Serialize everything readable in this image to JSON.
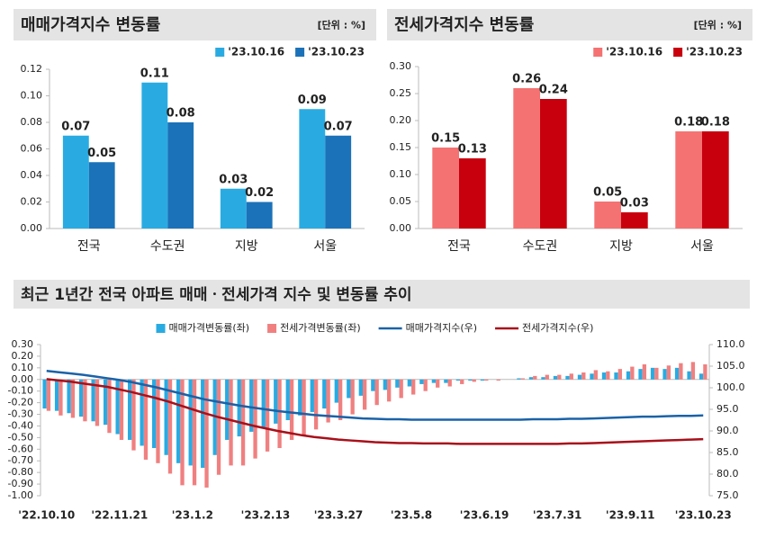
{
  "chart_data": [
    {
      "type": "bar",
      "title": "매매가격지수 변동률",
      "unit": "[단위 : %]",
      "categories": [
        "전국",
        "수도권",
        "지방",
        "서울"
      ],
      "series": [
        {
          "name": "'23.10.16",
          "color": "#29abe2",
          "values": [
            0.07,
            0.11,
            0.03,
            0.09
          ]
        },
        {
          "name": "'23.10.23",
          "color": "#1b72b8",
          "values": [
            0.05,
            0.08,
            0.02,
            0.07
          ]
        }
      ],
      "ylim": [
        0,
        0.12
      ],
      "yticks": [
        {
          "value": 0,
          "label": "0.00"
        },
        {
          "value": 0.02,
          "label": "0.02"
        },
        {
          "value": 0.04,
          "label": "0.04"
        },
        {
          "value": 0.06,
          "label": "0.06"
        },
        {
          "value": 0.08,
          "label": "0.08"
        },
        {
          "value": 0.1,
          "label": "0.10"
        },
        {
          "value": 0.12,
          "label": "0.12"
        }
      ],
      "grid": false,
      "legend": "top-right"
    },
    {
      "type": "bar",
      "title": "전세가격지수 변동률",
      "unit": "[단위 : %]",
      "categories": [
        "전국",
        "수도권",
        "지방",
        "서울"
      ],
      "series": [
        {
          "name": "'23.10.16",
          "color": "#f47272",
          "values": [
            0.15,
            0.26,
            0.05,
            0.18
          ]
        },
        {
          "name": "'23.10.23",
          "color": "#c8000e",
          "values": [
            0.13,
            0.24,
            0.03,
            0.18
          ]
        }
      ],
      "ylim": [
        0,
        0.3
      ],
      "yticks": [
        {
          "value": 0,
          "label": "0.00"
        },
        {
          "value": 0.05,
          "label": "0.05"
        },
        {
          "value": 0.1,
          "label": "0.10"
        },
        {
          "value": 0.15,
          "label": "0.15"
        },
        {
          "value": 0.2,
          "label": "0.20"
        },
        {
          "value": 0.25,
          "label": "0.25"
        },
        {
          "value": 0.3,
          "label": "0.30"
        }
      ],
      "grid": false,
      "legend": "top-right"
    },
    {
      "type": "combo",
      "title": "최근 1년간 전국 아파트 매매ㆍ전세가격 지수 및 변동률 추이",
      "categories": [
        "'22.10.10",
        null,
        null,
        null,
        null,
        null,
        "'22.11.21",
        null,
        null,
        null,
        null,
        null,
        "'23.1.2",
        null,
        null,
        null,
        null,
        null,
        "'23.2.13",
        null,
        null,
        null,
        null,
        null,
        "'23.3.27",
        null,
        null,
        null,
        null,
        null,
        "'23.5.8",
        null,
        null,
        null,
        null,
        null,
        "'23.6.19",
        null,
        null,
        null,
        null,
        null,
        "'23.7.31",
        null,
        null,
        null,
        null,
        null,
        "'23.9.11",
        null,
        null,
        null,
        null,
        null,
        "'23.10.23"
      ],
      "series": [
        {
          "name": "매매가격변동률(좌)",
          "type": "bar",
          "color": "#29abe2",
          "values": [
            -0.25,
            -0.27,
            -0.29,
            -0.32,
            -0.36,
            -0.39,
            -0.47,
            -0.52,
            -0.57,
            -0.59,
            -0.65,
            -0.72,
            -0.74,
            -0.76,
            -0.65,
            -0.52,
            -0.49,
            -0.45,
            -0.42,
            -0.38,
            -0.35,
            -0.31,
            -0.28,
            -0.25,
            -0.2,
            -0.16,
            -0.14,
            -0.1,
            -0.09,
            -0.07,
            -0.06,
            -0.04,
            -0.03,
            -0.03,
            -0.01,
            -0.01,
            -0.01,
            0,
            0,
            0.01,
            0.02,
            0.02,
            0.03,
            0.03,
            0.04,
            0.05,
            0.06,
            0.06,
            0.07,
            0.09,
            0.1,
            0.09,
            0.1,
            0.07,
            0.05
          ]
        },
        {
          "name": "전세가격변동률(좌)",
          "type": "bar",
          "color": "#f08080",
          "values": [
            -0.27,
            -0.31,
            -0.33,
            -0.36,
            -0.4,
            -0.46,
            -0.52,
            -0.61,
            -0.69,
            -0.72,
            -0.81,
            -0.91,
            -0.91,
            -0.93,
            -0.82,
            -0.74,
            -0.74,
            -0.68,
            -0.62,
            -0.59,
            -0.52,
            -0.48,
            -0.43,
            -0.37,
            -0.35,
            -0.3,
            -0.26,
            -0.22,
            -0.19,
            -0.16,
            -0.13,
            -0.1,
            -0.07,
            -0.06,
            -0.04,
            -0.02,
            -0.01,
            -0.01,
            0,
            0.01,
            0.03,
            0.04,
            0.04,
            0.05,
            0.06,
            0.08,
            0.07,
            0.09,
            0.11,
            0.13,
            0.1,
            0.12,
            0.14,
            0.15,
            0.13
          ]
        },
        {
          "name": "매매가격지수(우)",
          "type": "line",
          "axis": "y2",
          "color": "#1a62a8",
          "values": [
            103.9,
            103.6,
            103.3,
            103.0,
            102.6,
            102.2,
            101.8,
            101.3,
            100.7,
            100.1,
            99.4,
            98.7,
            98.0,
            97.3,
            96.8,
            96.3,
            95.8,
            95.4,
            95.0,
            94.6,
            94.3,
            94.0,
            93.7,
            93.5,
            93.3,
            93.1,
            92.9,
            92.8,
            92.7,
            92.7,
            92.6,
            92.6,
            92.6,
            92.6,
            92.6,
            92.6,
            92.6,
            92.6,
            92.6,
            92.6,
            92.7,
            92.7,
            92.7,
            92.8,
            92.8,
            92.9,
            93.0,
            93.1,
            93.2,
            93.3,
            93.3,
            93.4,
            93.5,
            93.5,
            93.6
          ]
        },
        {
          "name": "전세가격지수(우)",
          "type": "line",
          "axis": "y2",
          "color": "#a8101a",
          "values": [
            102.0,
            101.7,
            101.4,
            101.0,
            100.6,
            100.2,
            99.6,
            99.0,
            98.3,
            97.6,
            96.8,
            95.9,
            95.0,
            94.1,
            93.3,
            92.6,
            91.9,
            91.2,
            90.6,
            90.0,
            89.5,
            89.0,
            88.6,
            88.3,
            88.0,
            87.8,
            87.6,
            87.4,
            87.3,
            87.2,
            87.2,
            87.1,
            87.1,
            87.1,
            87.0,
            87.0,
            87.0,
            87.0,
            87.0,
            87.0,
            87.0,
            87.0,
            87.0,
            87.1,
            87.1,
            87.2,
            87.3,
            87.4,
            87.5,
            87.6,
            87.7,
            87.8,
            87.9,
            88.0,
            88.1
          ]
        }
      ],
      "ylim": [
        -1,
        0.3
      ],
      "yticks": [
        {
          "value": -1,
          "label": "-1.00"
        },
        {
          "value": -0.9,
          "label": "-0.90"
        },
        {
          "value": -0.8,
          "label": "-0.80"
        },
        {
          "value": -0.7,
          "label": "-0.70"
        },
        {
          "value": -0.6,
          "label": "-0.60"
        },
        {
          "value": -0.5,
          "label": "-0.50"
        },
        {
          "value": -0.4,
          "label": "-0.40"
        },
        {
          "value": -0.3,
          "label": "-0.30"
        },
        {
          "value": -0.2,
          "label": "-0.20"
        },
        {
          "value": -0.1,
          "label": "-0.10"
        },
        {
          "value": 0,
          "label": "0.00"
        },
        {
          "value": 0.1,
          "label": "0.10"
        },
        {
          "value": 0.2,
          "label": "0.20"
        },
        {
          "value": 0.3,
          "label": "0.30"
        }
      ],
      "y2lim": [
        75,
        110
      ],
      "y2ticks": [
        {
          "value": 75,
          "label": "75.0"
        },
        {
          "value": 80,
          "label": "80.0"
        },
        {
          "value": 85,
          "label": "85.0"
        },
        {
          "value": 90,
          "label": "90.0"
        },
        {
          "value": 95,
          "label": "95.0"
        },
        {
          "value": 100,
          "label": "100.0"
        },
        {
          "value": 105,
          "label": "105.0"
        },
        {
          "value": 110,
          "label": "110.0"
        }
      ],
      "grid": false,
      "legend": "top"
    }
  ]
}
